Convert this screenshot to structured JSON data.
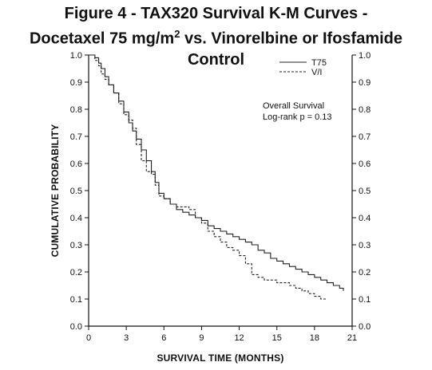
{
  "title": {
    "line1": "Figure 4 - TAX320 Survival K-M Curves -",
    "line2_pre": "Docetaxel 75 mg/m",
    "line2_sup": "2",
    "line2_post": " vs. Vinorelbine or Ifosfamide Control"
  },
  "chart_data": {
    "type": "line",
    "title": "Figure 4 - TAX320 Survival K-M Curves - Docetaxel 75 mg/m2 vs. Vinorelbine or Ifosfamide Control",
    "xlabel": "SURVIVAL TIME (MONTHS)",
    "ylabel": "CUMULATIVE PROBABILITY",
    "xlim": [
      0,
      21
    ],
    "ylim": [
      0,
      1.0
    ],
    "x_ticks": [
      "0",
      "3",
      "6",
      "9",
      "12",
      "15",
      "18",
      "21"
    ],
    "y_ticks": [
      "0.0",
      "0.1",
      "0.2",
      "0.3",
      "0.4",
      "0.5",
      "0.6",
      "0.7",
      "0.8",
      "0.9",
      "1.0"
    ],
    "legend_position": "top-right",
    "annotation": [
      "Overall Survival",
      "Log-rank p = 0.13"
    ],
    "series": [
      {
        "name": "T75",
        "style": "solid",
        "color": "#222222",
        "x": [
          0,
          0.5,
          0.8,
          1.0,
          1.3,
          1.6,
          2.0,
          2.4,
          2.8,
          3.2,
          3.5,
          3.8,
          4.2,
          4.6,
          5.0,
          5.3,
          5.6,
          6.0,
          6.5,
          7.0,
          7.5,
          8.0,
          8.5,
          9.0,
          9.5,
          10.0,
          10.5,
          11.0,
          11.5,
          12.0,
          12.5,
          13.0,
          13.5,
          14.0,
          14.5,
          15.0,
          15.5,
          16.0,
          16.5,
          17.0,
          17.5,
          18.0,
          18.5,
          19.0,
          19.5,
          20.0,
          20.3
        ],
        "y": [
          1.0,
          0.99,
          0.97,
          0.95,
          0.92,
          0.89,
          0.86,
          0.83,
          0.79,
          0.75,
          0.72,
          0.69,
          0.65,
          0.61,
          0.57,
          0.53,
          0.49,
          0.47,
          0.45,
          0.43,
          0.42,
          0.41,
          0.4,
          0.39,
          0.37,
          0.36,
          0.35,
          0.34,
          0.33,
          0.32,
          0.31,
          0.3,
          0.28,
          0.27,
          0.25,
          0.24,
          0.23,
          0.22,
          0.21,
          0.2,
          0.19,
          0.18,
          0.17,
          0.16,
          0.15,
          0.14,
          0.13
        ]
      },
      {
        "name": "V/I",
        "style": "dashed",
        "color": "#222222",
        "x": [
          0,
          0.5,
          0.8,
          1.0,
          1.3,
          1.6,
          2.0,
          2.4,
          2.8,
          3.2,
          3.5,
          3.8,
          4.2,
          4.6,
          5.0,
          5.3,
          5.6,
          6.0,
          6.5,
          7.0,
          7.5,
          8.0,
          8.5,
          9.0,
          9.5,
          10.0,
          10.5,
          11.0,
          11.5,
          12.0,
          12.5,
          13.0,
          13.5,
          14.0,
          14.5,
          15.0,
          15.5,
          16.0,
          16.5,
          17.0,
          17.5,
          18.0,
          18.5,
          19.0
        ],
        "y": [
          1.0,
          0.98,
          0.96,
          0.93,
          0.91,
          0.89,
          0.86,
          0.82,
          0.78,
          0.76,
          0.73,
          0.67,
          0.61,
          0.57,
          0.56,
          0.52,
          0.48,
          0.47,
          0.45,
          0.44,
          0.44,
          0.43,
          0.4,
          0.38,
          0.35,
          0.33,
          0.31,
          0.29,
          0.28,
          0.26,
          0.23,
          0.19,
          0.18,
          0.17,
          0.17,
          0.16,
          0.16,
          0.15,
          0.14,
          0.13,
          0.12,
          0.11,
          0.1,
          0.1
        ]
      }
    ]
  }
}
